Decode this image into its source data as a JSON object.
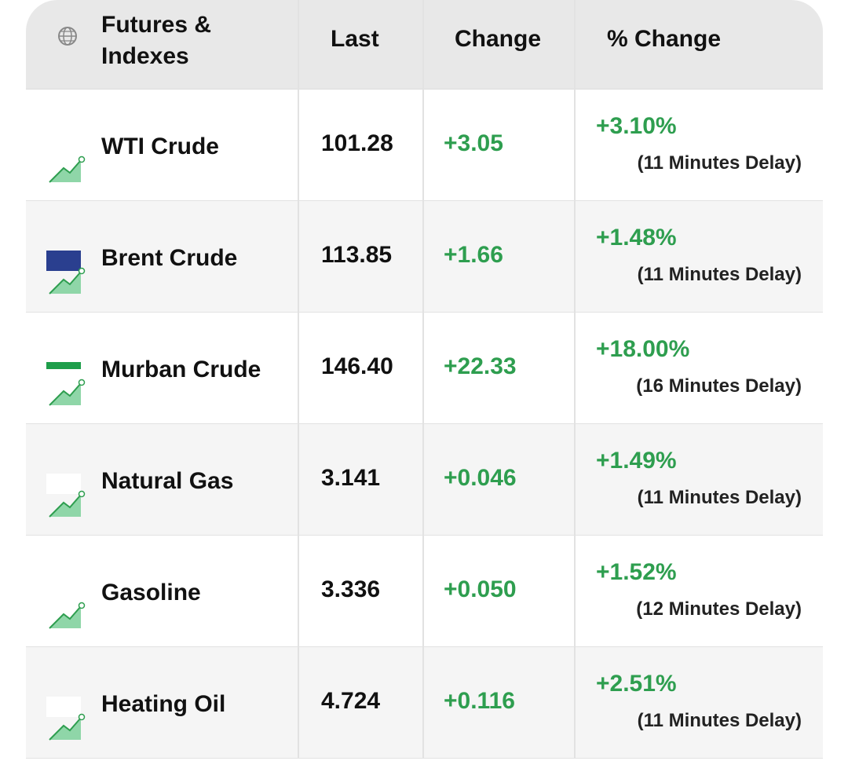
{
  "header": {
    "columns": [
      "Futures & Indexes",
      "Last",
      "Change",
      "% Change"
    ]
  },
  "table": {
    "rows": [
      {
        "name": "WTI Crude",
        "last": "101.28",
        "change": "+3.05",
        "pct_change": "+3.10%",
        "delay": "(11 Minutes Delay)"
      },
      {
        "name": "Brent Crude",
        "last": "113.85",
        "change": "+1.66",
        "pct_change": "+1.48%",
        "delay": "(11 Minutes Delay)"
      },
      {
        "name": "Murban Crude",
        "last": "146.40",
        "change": "+22.33",
        "pct_change": "+18.00%",
        "delay": "(16 Minutes Delay)"
      },
      {
        "name": "Natural Gas",
        "last": "3.141",
        "change": "+0.046",
        "pct_change": "+1.49%",
        "delay": "(11 Minutes Delay)"
      },
      {
        "name": "Gasoline",
        "last": "3.336",
        "change": "+0.050",
        "pct_change": "+1.52%",
        "delay": "(12 Minutes Delay)"
      },
      {
        "name": "Heating Oil",
        "last": "4.724",
        "change": "+0.116",
        "pct_change": "+2.51%",
        "delay": "(11 Minutes Delay)"
      }
    ]
  }
}
